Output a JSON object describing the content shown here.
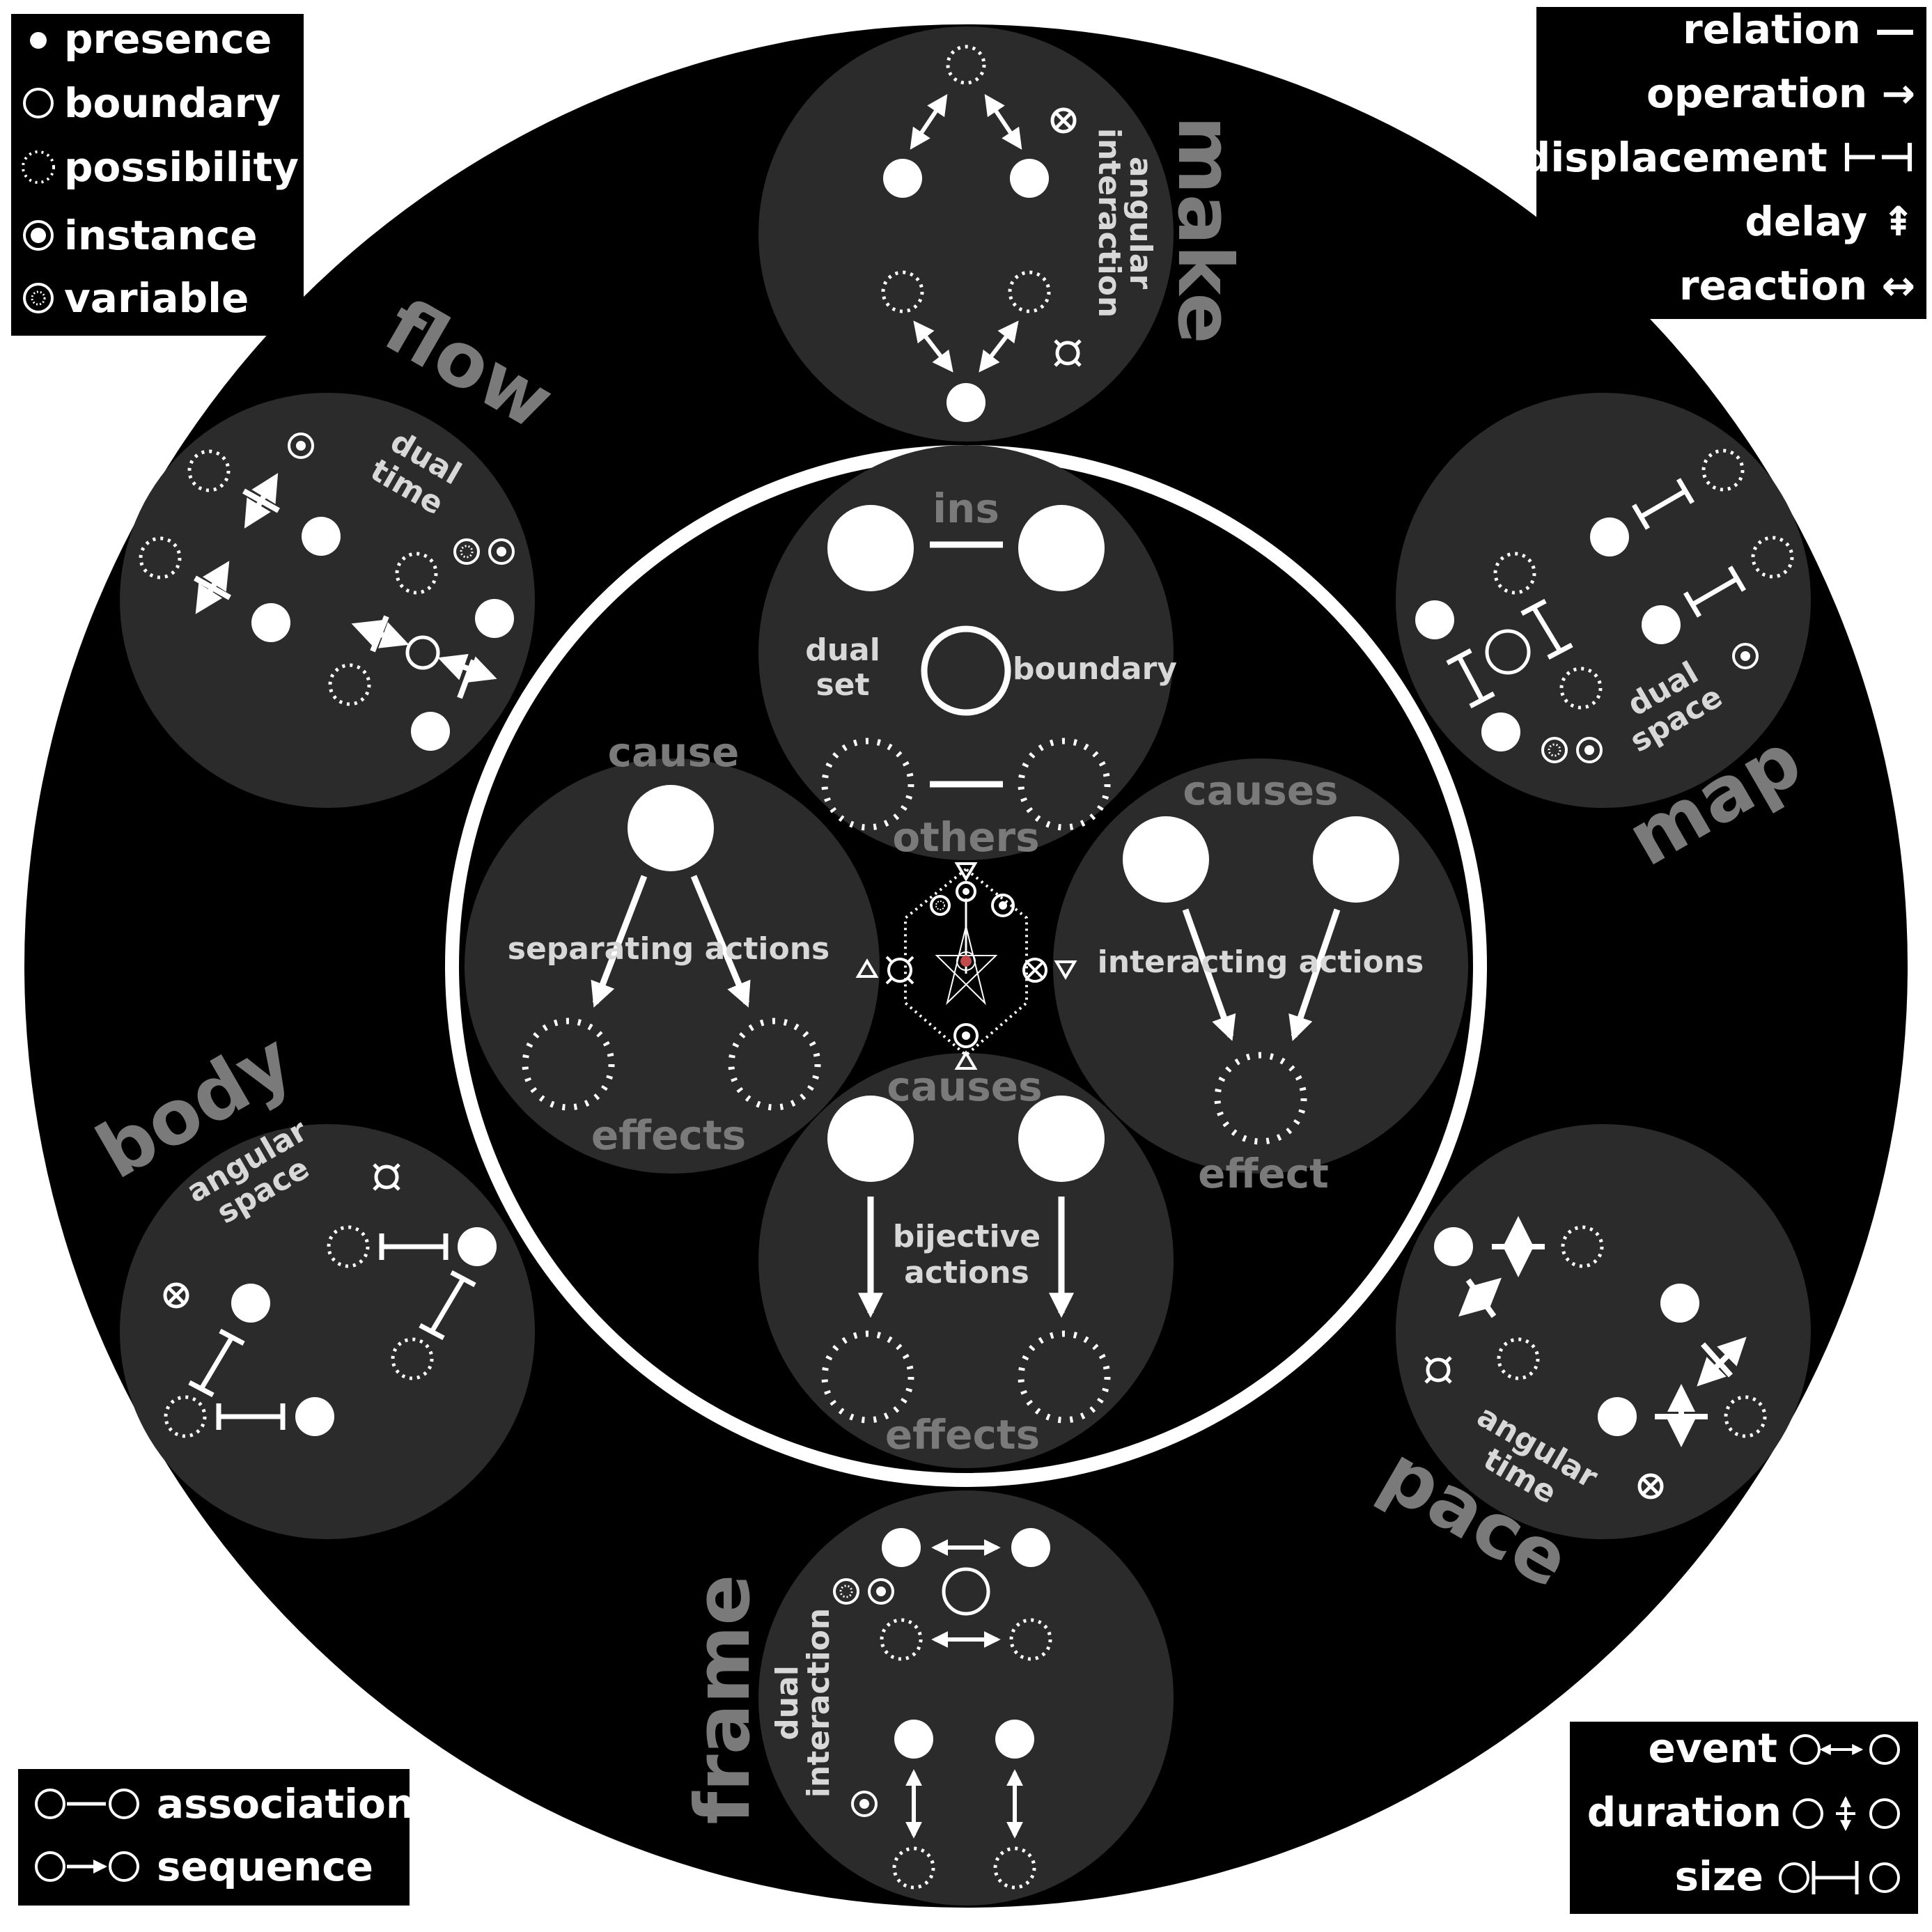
{
  "legend_symbols": [
    {
      "glyph": "presence-icon",
      "label": "presence"
    },
    {
      "glyph": "boundary-icon",
      "label": "boundary"
    },
    {
      "glyph": "possibility-icon",
      "label": "possibility"
    },
    {
      "glyph": "instance-icon",
      "label": "instance"
    },
    {
      "glyph": "variable-icon",
      "label": "variable"
    }
  ],
  "legend_operators": [
    {
      "label": "relation —"
    },
    {
      "label": "operation →"
    },
    {
      "label": "displacement ⊢⊣"
    },
    {
      "label": "delay ⇞"
    },
    {
      "label": "reaction ↔"
    }
  ],
  "legend_links": [
    {
      "label": "association"
    },
    {
      "label": "sequence"
    }
  ],
  "legend_measures": [
    {
      "label": "event"
    },
    {
      "label": "duration"
    },
    {
      "label": "size"
    }
  ],
  "outer_labels": {
    "make": "make",
    "map": "map",
    "pace": "pace",
    "frame": "frame",
    "body": "body",
    "flow": "flow"
  },
  "outer_sublabels": {
    "make_1": "angular",
    "make_2": "interaction",
    "map_1": "dual",
    "map_2": "space",
    "pace_1": "angular",
    "pace_2": "time",
    "frame_1": "dual",
    "frame_2": "interaction",
    "body_1": "angular",
    "body_2": "space",
    "flow_1": "dual",
    "flow_2": "time"
  },
  "inner": {
    "top": {
      "title": "ins",
      "left": "dual",
      "left2": "set",
      "right": "boundary",
      "bottom": "others"
    },
    "left": {
      "title": "cause",
      "middle": "separating actions",
      "bottom": "effects"
    },
    "right": {
      "title": "causes",
      "middle": "interacting actions",
      "bottom": "effect"
    },
    "bottom": {
      "title": "causes",
      "middle": "bijective",
      "middle2": "actions",
      "bottom": "effects"
    }
  },
  "colors": {
    "background": "#ffffff",
    "ring": "#000000",
    "disc": "#2b2b2b",
    "ink": "#ffffff",
    "muted": "#7a7a7a",
    "sublabel": "#d8d8d8",
    "center_accent": "#c24a4a"
  }
}
